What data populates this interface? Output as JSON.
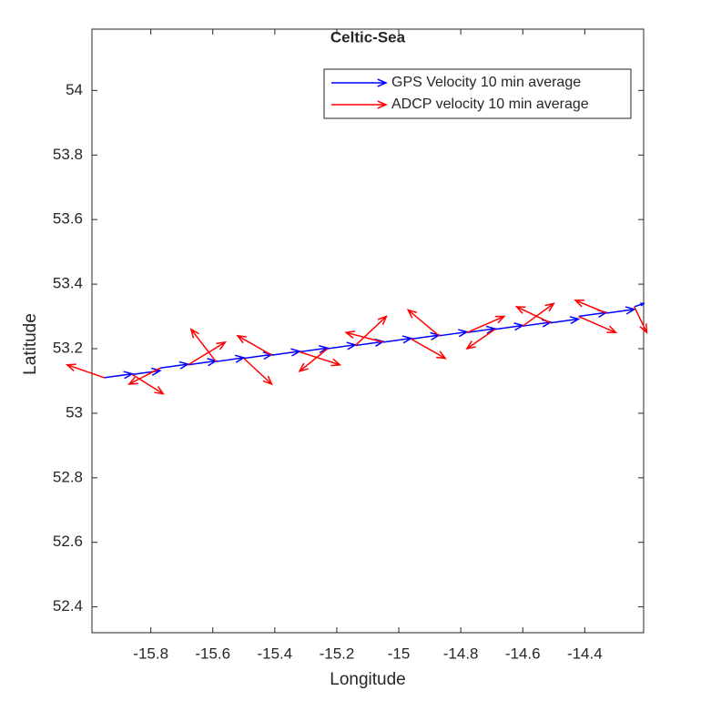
{
  "chart_data": {
    "type": "quiver",
    "title": "Celtic-Sea",
    "xlabel": "Longitude",
    "ylabel": "Latitude",
    "xlim": [
      -15.99,
      -14.21
    ],
    "ylim": [
      52.32,
      54.19
    ],
    "xticks": [
      -15.8,
      -15.6,
      -15.4,
      -15.2,
      -15,
      -14.8,
      -14.6,
      -14.4
    ],
    "yticks": [
      52.4,
      52.6,
      52.8,
      53,
      53.2,
      53.4,
      53.6,
      53.8,
      54
    ],
    "legend": "upper right",
    "series": [
      {
        "name": "GPS Velocity 10 min average",
        "color": "#0000ff",
        "x": [
          -15.95,
          -15.86,
          -15.77,
          -15.68,
          -15.59,
          -15.5,
          -15.41,
          -15.32,
          -15.23,
          -15.14,
          -15.05,
          -14.96,
          -14.87,
          -14.78,
          -14.69,
          -14.6,
          -14.51,
          -14.42,
          -14.33,
          -14.24
        ],
        "y": [
          53.11,
          53.12,
          53.14,
          53.15,
          53.16,
          53.17,
          53.18,
          53.19,
          53.2,
          53.21,
          53.22,
          53.23,
          53.24,
          53.25,
          53.26,
          53.27,
          53.28,
          53.3,
          53.31,
          53.33
        ],
        "u": [
          0.09,
          0.09,
          0.09,
          0.09,
          0.09,
          0.09,
          0.09,
          0.09,
          0.09,
          0.09,
          0.09,
          0.09,
          0.09,
          0.09,
          0.09,
          0.09,
          0.09,
          0.09,
          0.09,
          0.03
        ],
        "v": [
          0.012,
          0.012,
          0.012,
          0.012,
          0.012,
          0.012,
          0.012,
          0.012,
          0.012,
          0.012,
          0.012,
          0.012,
          0.012,
          0.012,
          0.012,
          0.012,
          0.012,
          0.012,
          0.012,
          0.01
        ]
      },
      {
        "name": "ADCP velocity 10 min average",
        "color": "#ff0000",
        "x": [
          -15.95,
          -15.86,
          -15.77,
          -15.68,
          -15.59,
          -15.5,
          -15.41,
          -15.32,
          -15.23,
          -15.14,
          -15.05,
          -14.96,
          -14.87,
          -14.78,
          -14.69,
          -14.6,
          -14.51,
          -14.42,
          -14.33,
          -14.24
        ],
        "y": [
          53.11,
          53.12,
          53.14,
          53.15,
          53.16,
          53.17,
          53.18,
          53.19,
          53.2,
          53.21,
          53.22,
          53.23,
          53.24,
          53.25,
          53.26,
          53.27,
          53.28,
          53.3,
          53.31,
          53.33
        ],
        "u": [
          -0.12,
          0.1,
          -0.1,
          0.12,
          -0.08,
          0.09,
          -0.11,
          0.13,
          -0.09,
          0.1,
          -0.12,
          0.11,
          -0.1,
          0.12,
          -0.09,
          0.1,
          -0.11,
          0.12,
          -0.1,
          0.04
        ],
        "v": [
          0.04,
          -0.06,
          -0.05,
          0.07,
          0.1,
          -0.08,
          0.06,
          -0.04,
          -0.07,
          0.09,
          0.03,
          -0.06,
          0.08,
          0.05,
          -0.06,
          0.07,
          0.05,
          -0.05,
          0.04,
          -0.08
        ]
      }
    ]
  }
}
